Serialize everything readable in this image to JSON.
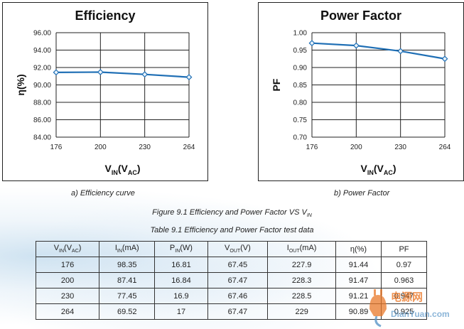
{
  "chart_data": [
    {
      "type": "line",
      "title": "Efficiency",
      "xlabel_main": "V",
      "xlabel_sub": "IN",
      "xlabel_paren_main": "(V",
      "xlabel_paren_sub": "AC",
      "xlabel_close": ")",
      "ylabel": "η(%)",
      "categories": [
        "176",
        "200",
        "230",
        "264"
      ],
      "yticks": [
        "96.00",
        "94.00",
        "92.00",
        "90.00",
        "88.00",
        "86.00",
        "84.00"
      ],
      "ylim": [
        84,
        96
      ],
      "series": [
        {
          "values": [
            91.44,
            91.47,
            91.21,
            90.89
          ]
        }
      ],
      "color": "#1f6fb5",
      "grid": true
    },
    {
      "type": "line",
      "title": "Power Factor",
      "xlabel_main": "V",
      "xlabel_sub": "IN",
      "xlabel_paren_main": "(V",
      "xlabel_paren_sub": "AC",
      "xlabel_close": ")",
      "ylabel": "PF",
      "categories": [
        "176",
        "200",
        "230",
        "264"
      ],
      "yticks": [
        "1.00",
        "0.95",
        "0.90",
        "0.85",
        "0.80",
        "0.75",
        "0.70"
      ],
      "ylim": [
        0.7,
        1.0
      ],
      "series": [
        {
          "values": [
            0.97,
            0.963,
            0.947,
            0.925
          ]
        }
      ],
      "color": "#1f6fb5",
      "grid": true
    }
  ],
  "captions": {
    "a": "a) Efficiency curve",
    "b": "b) Power Factor",
    "figure_main": "Figure 9.1 Efficiency and Power Factor VS V",
    "figure_sub": "IN",
    "table": "Table 9.1 Efficiency and Power Factor test data"
  },
  "table": {
    "headers": [
      {
        "main": "V",
        "sub": "IN",
        "rest": "(V",
        "sub2": "AC",
        "end": ")"
      },
      {
        "main": "I",
        "sub": "IN",
        "rest": "(mA)"
      },
      {
        "main": "P",
        "sub": "IN",
        "rest": "(W)"
      },
      {
        "main": "V",
        "sub": "OUT",
        "rest": "(V)"
      },
      {
        "main": "I",
        "sub": "OUT",
        "rest": "(mA)"
      },
      {
        "main": "η(%)"
      },
      {
        "main": "PF"
      }
    ],
    "rows": [
      [
        "176",
        "98.35",
        "16.81",
        "67.45",
        "227.9",
        "91.44",
        "0.97"
      ],
      [
        "200",
        "87.41",
        "16.84",
        "67.47",
        "228.3",
        "91.47",
        "0.963"
      ],
      [
        "230",
        "77.45",
        "16.9",
        "67.46",
        "228.5",
        "91.21",
        "0.947"
      ],
      [
        "264",
        "69.52",
        "17",
        "67.47",
        "229",
        "90.89",
        "0.925"
      ]
    ]
  },
  "watermark": {
    "line1": "电源网",
    "line2": "DianYuan.com",
    "color_orange": "#e8782a",
    "color_blue": "#5a96c8"
  }
}
